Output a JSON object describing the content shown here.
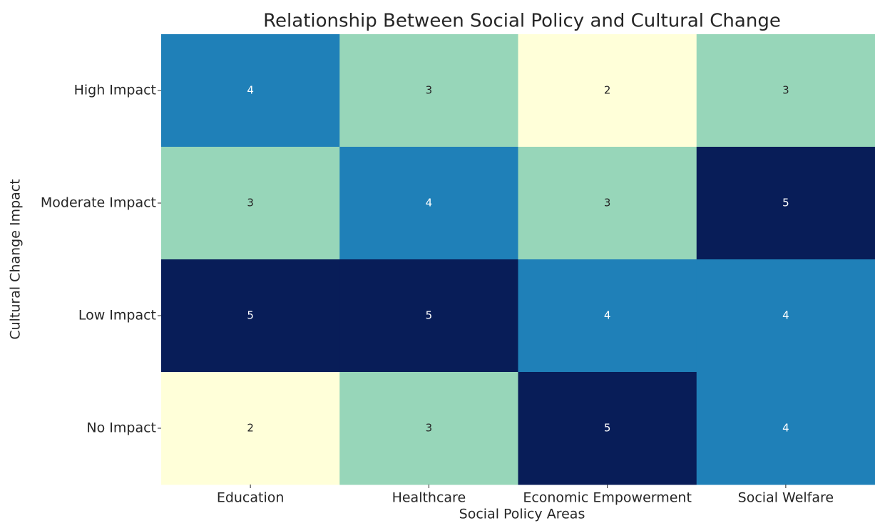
{
  "chart_data": {
    "type": "heatmap",
    "title": "Relationship Between Social Policy and Cultural Change",
    "xlabel": "Social Policy Areas",
    "ylabel": "Cultural Change Impact",
    "x": [
      "Education",
      "Healthcare",
      "Economic Empowerment",
      "Social Welfare"
    ],
    "y": [
      "High Impact",
      "Moderate Impact",
      "Low Impact",
      "No Impact"
    ],
    "values": [
      [
        4,
        3,
        2,
        3
      ],
      [
        3,
        4,
        3,
        5
      ],
      [
        5,
        5,
        4,
        4
      ],
      [
        2,
        3,
        5,
        4
      ]
    ],
    "cmap": "YlGnBu"
  }
}
